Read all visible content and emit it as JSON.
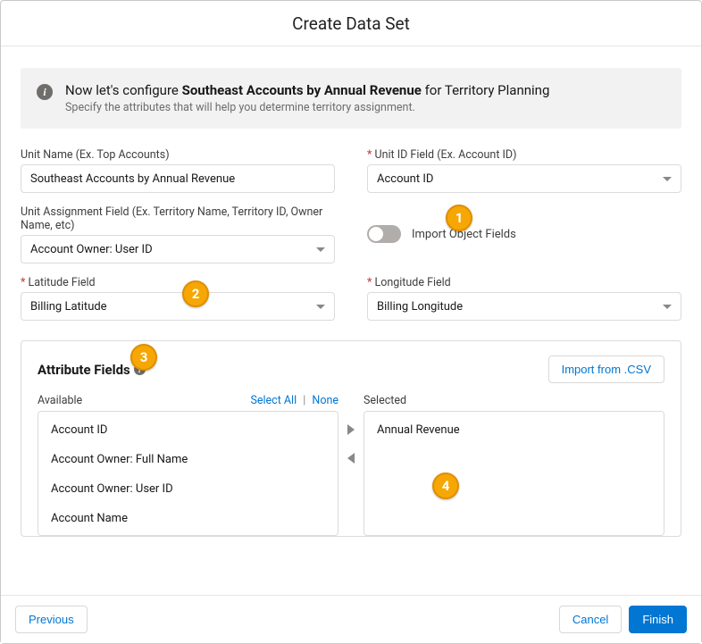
{
  "header": {
    "title": "Create Data Set"
  },
  "banner": {
    "prefix": "Now let's configure ",
    "highlight": "Southeast Accounts by Annual Revenue",
    "suffix": " for Territory Planning",
    "subtitle": "Specify the attributes that will help you determine territory assignment."
  },
  "fields": {
    "unit_name": {
      "label": "Unit Name (Ex. Top Accounts)",
      "value": "Southeast Accounts by Annual Revenue"
    },
    "unit_id": {
      "label": "Unit ID Field (Ex. Account ID)",
      "value": "Account ID"
    },
    "unit_assign": {
      "label": "Unit Assignment Field (Ex. Territory Name, Territory ID, Owner Name, etc)",
      "value": "Account Owner: User ID"
    },
    "import_toggle": {
      "label": "Import Object Fields"
    },
    "latitude": {
      "label": "Latitude Field",
      "value": "Billing Latitude"
    },
    "longitude": {
      "label": "Longitude Field",
      "value": "Billing Longitude"
    }
  },
  "attributes": {
    "title": "Attribute Fields",
    "import_btn": "Import from .CSV",
    "available_label": "Available",
    "select_all": "Select All",
    "none": "None",
    "selected_label": "Selected",
    "available_items": [
      "Account ID",
      "Account Owner: Full Name",
      "Account Owner: User ID",
      "Account Name"
    ],
    "selected_items": [
      "Annual Revenue"
    ]
  },
  "footer": {
    "previous": "Previous",
    "cancel": "Cancel",
    "finish": "Finish"
  },
  "callouts": {
    "c1": "1",
    "c2": "2",
    "c3": "3",
    "c4": "4"
  },
  "colors": {
    "accent": "#0176d3",
    "callout": "#f6a704",
    "banner_bg": "#f3f2f2"
  }
}
